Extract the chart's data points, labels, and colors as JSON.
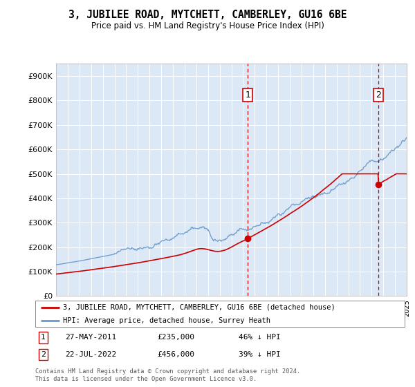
{
  "title": "3, JUBILEE ROAD, MYTCHETT, CAMBERLEY, GU16 6BE",
  "subtitle": "Price paid vs. HM Land Registry's House Price Index (HPI)",
  "ylim": [
    0,
    950000
  ],
  "yticks": [
    0,
    100000,
    200000,
    300000,
    400000,
    500000,
    600000,
    700000,
    800000,
    900000
  ],
  "ytick_labels": [
    "£0",
    "£100K",
    "£200K",
    "£300K",
    "£400K",
    "£500K",
    "£600K",
    "£700K",
    "£800K",
    "£900K"
  ],
  "hpi_color": "#6699cc",
  "sale_color": "#cc0000",
  "dashed_line_color": "#cc0000",
  "plot_bg_color": "#dce8f5",
  "sale1_date": "27-MAY-2011",
  "sale1_price": 235000,
  "sale1_pct": "46%",
  "sale2_date": "22-JUL-2022",
  "sale2_price": 456000,
  "sale2_pct": "39%",
  "legend_line1": "3, JUBILEE ROAD, MYTCHETT, CAMBERLEY, GU16 6BE (detached house)",
  "legend_line2": "HPI: Average price, detached house, Surrey Heath",
  "footnote": "Contains HM Land Registry data © Crown copyright and database right 2024.\nThis data is licensed under the Open Government Licence v3.0.",
  "x_start_year": 1995,
  "x_end_year": 2025,
  "sale1_year": 2011.41,
  "sale2_year": 2022.55
}
